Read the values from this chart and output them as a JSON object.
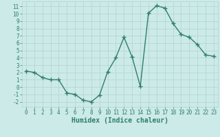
{
  "x": [
    0,
    1,
    2,
    3,
    4,
    5,
    6,
    7,
    8,
    9,
    10,
    11,
    12,
    13,
    14,
    15,
    16,
    17,
    18,
    19,
    20,
    21,
    22,
    23
  ],
  "y": [
    2.2,
    2.0,
    1.3,
    1.0,
    1.0,
    -0.8,
    -1.0,
    -1.8,
    -2.0,
    -1.1,
    2.1,
    4.0,
    6.8,
    4.1,
    0.1,
    10.1,
    11.1,
    10.8,
    8.7,
    7.2,
    6.8,
    5.8,
    4.4,
    4.2
  ],
  "line_color": "#2e7d6e",
  "marker": "+",
  "marker_size": 4,
  "bg_color": "#cceae7",
  "grid_color": "#b0d4d0",
  "xlabel": "Humidex (Indice chaleur)",
  "xlim": [
    -0.5,
    23.5
  ],
  "ylim": [
    -2.7,
    11.7
  ],
  "ytick_values": [
    -2,
    -1,
    0,
    1,
    2,
    3,
    4,
    5,
    6,
    7,
    8,
    9,
    10,
    11
  ],
  "font_color": "#2e7d6e",
  "line_width": 1.0,
  "xlabel_fontsize": 7,
  "tick_fontsize": 5.5
}
